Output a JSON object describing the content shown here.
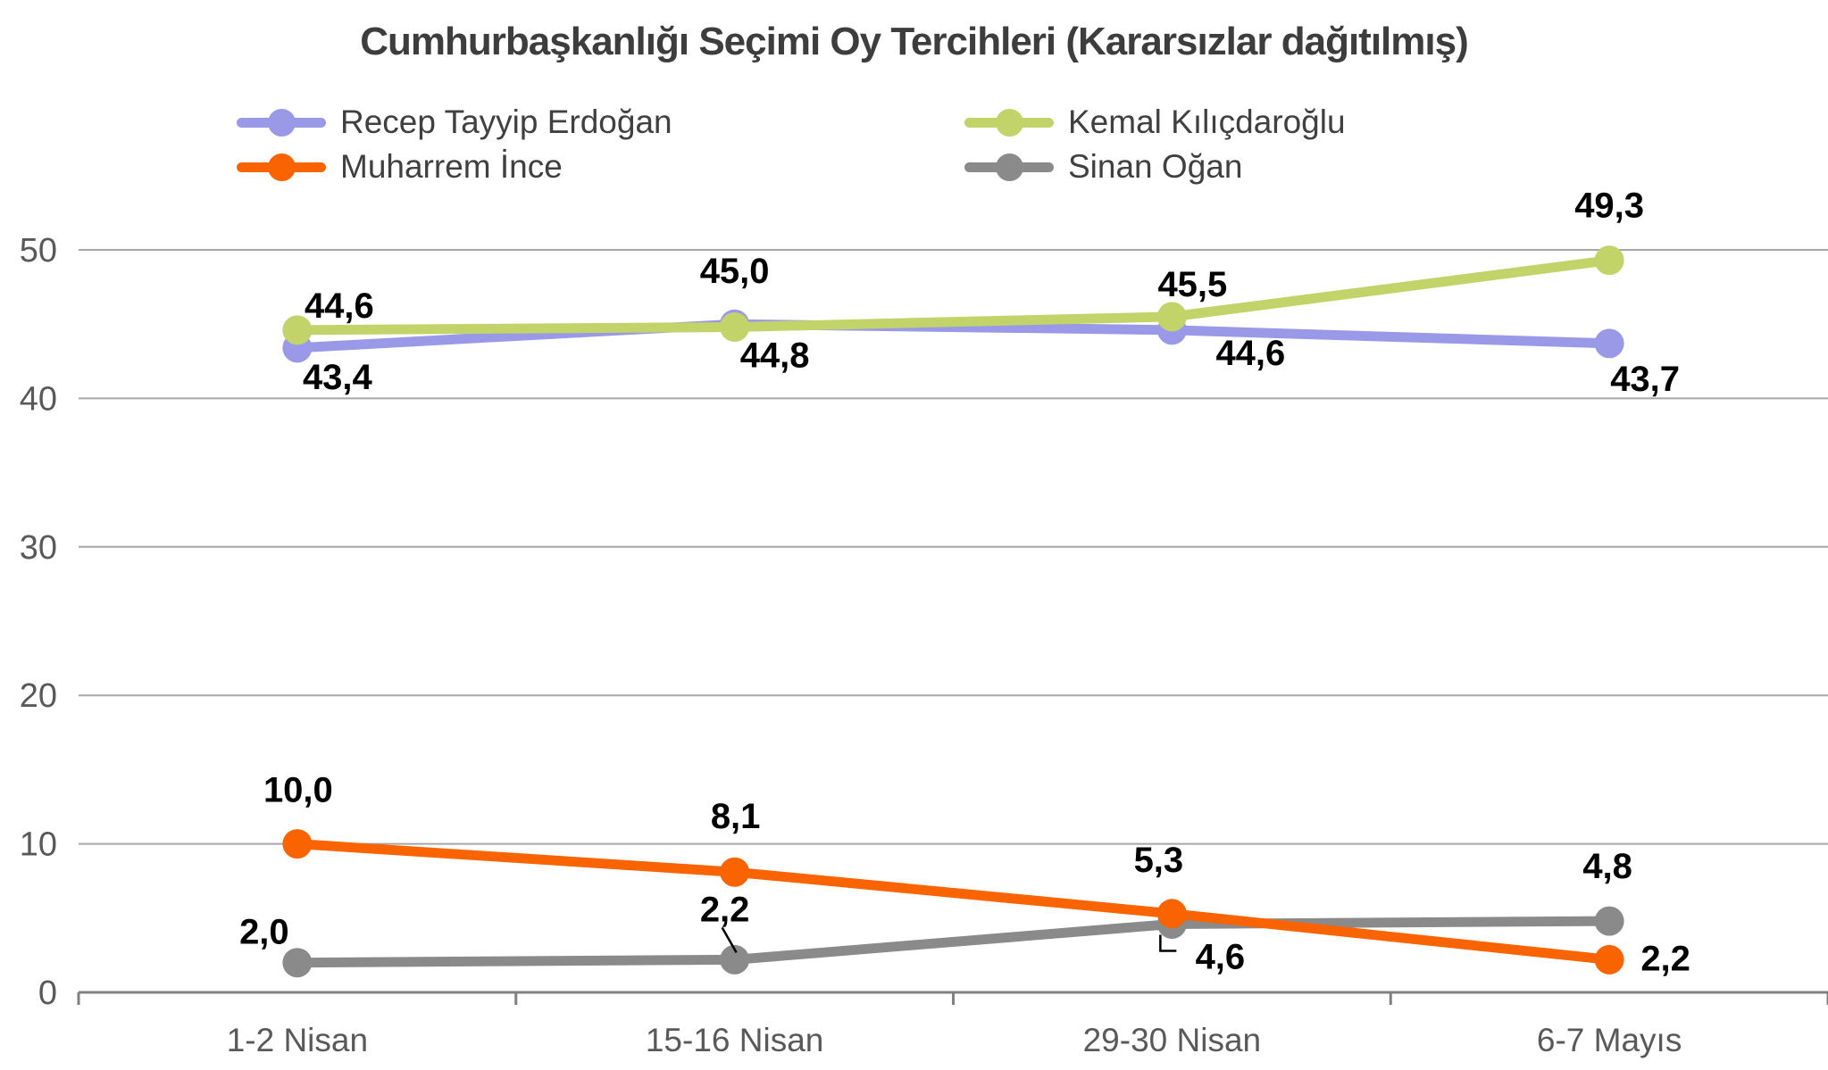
{
  "title": "Cumhurbaşkanlığı Seçimi Oy Tercihleri (Kararsızlar dağıtılmış)",
  "chart_data": {
    "type": "line",
    "title": "Cumhurbaşkanlığı Seçimi Oy Tercihleri (Kararsızlar dağıtılmış)",
    "categories": [
      "1-2 Nisan",
      "15-16 Nisan",
      "29-30 Nisan",
      "6-7 Mayıs"
    ],
    "xlabel": "",
    "ylabel": "",
    "ylim": [
      0,
      50
    ],
    "y_ticks": [
      0,
      10,
      20,
      30,
      40,
      50
    ],
    "grid": true,
    "legend_position": "top",
    "decimal_separator": ",",
    "draw_order": [
      0,
      1,
      3,
      2
    ],
    "style": {
      "gridline_color": "#a6a6a6",
      "axis_color": "#808080",
      "tick_label_color": "#595959",
      "data_label_color": "#000000",
      "background": "#ffffff",
      "line_width": 11,
      "marker_radius": 16.5
    },
    "series": [
      {
        "name": "Recep Tayyip Erdoğan",
        "color": "#9999e8",
        "values": [
          43.4,
          45.0,
          44.6,
          43.7
        ],
        "labels": [
          {
            "text": "43,4",
            "dx": 45,
            "dy": 32
          },
          {
            "text": "45,0",
            "dx": 0,
            "dy": -60
          },
          {
            "text": "44,6",
            "dx": 88,
            "dy": 25
          },
          {
            "text": "43,7",
            "dx": 40,
            "dy": 39
          }
        ]
      },
      {
        "name": "Kemal Kılıçdaroğlu",
        "color": "#c2d469",
        "values": [
          44.6,
          44.8,
          45.5,
          49.3
        ],
        "labels": [
          {
            "text": "44,6",
            "dx": 47,
            "dy": -28
          },
          {
            "text": "44,8",
            "dx": 45,
            "dy": 31
          },
          {
            "text": "45,5",
            "dx": 23,
            "dy": -37
          },
          {
            "text": "49,3",
            "dx": 0,
            "dy": -62
          }
        ]
      },
      {
        "name": "Muharrem İnce",
        "color": "#f96300",
        "values": [
          10.0,
          8.1,
          5.3,
          2.2
        ],
        "labels": [
          {
            "text": "10,0",
            "dx": 1,
            "dy": -61
          },
          {
            "text": "8,1",
            "dx": 1,
            "dy": -63
          },
          {
            "text": "5,3",
            "dx": -15,
            "dy": -61
          },
          {
            "text": "2,2",
            "dx": 63,
            "dy": -2
          }
        ]
      },
      {
        "name": "Sinan Oğan",
        "color": "#8a8a8a",
        "values": [
          2.0,
          2.2,
          4.6,
          4.8
        ],
        "labels": [
          {
            "text": "2,0",
            "dx": -37,
            "dy": -35
          },
          {
            "text": "2,2",
            "dx": -11,
            "dy": -57,
            "leader": [
              [
                -14,
                -36
              ],
              [
                2,
                -8
              ]
            ]
          },
          {
            "text": "4,6",
            "dx": 54,
            "dy": 36,
            "leader": [
              [
                -13,
                12
              ],
              [
                -13,
                30
              ],
              [
                5,
                30
              ]
            ]
          },
          {
            "text": "4,8",
            "dx": -2,
            "dy": -62
          }
        ]
      }
    ]
  }
}
